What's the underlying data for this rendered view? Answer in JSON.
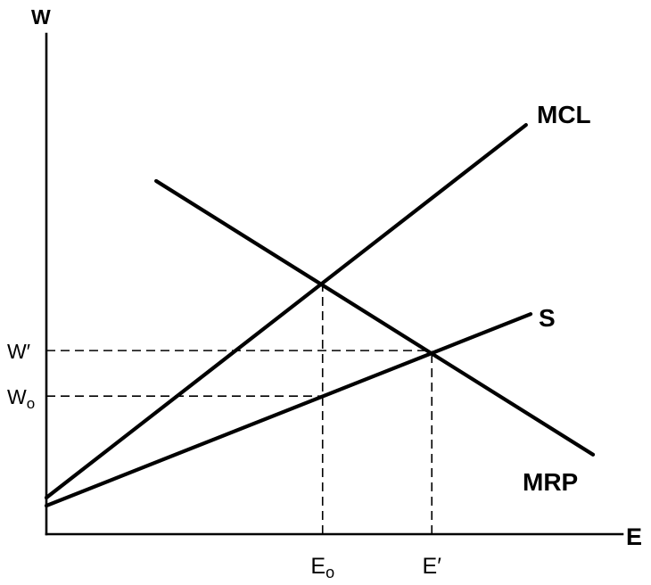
{
  "chart_data": {
    "type": "line",
    "title": "",
    "xlabel": "E",
    "ylabel": "W",
    "xlim": [
      0,
      100
    ],
    "ylim": [
      0,
      100
    ],
    "grid": false,
    "line_color": "#000000",
    "series": [
      {
        "name": "MCL",
        "points": [
          [
            0,
            7.3
          ],
          [
            83.0,
            81.8
          ]
        ]
      },
      {
        "name": "S",
        "points": [
          [
            0,
            5.7
          ],
          [
            83.8,
            44.0
          ]
        ]
      },
      {
        "name": "MRP",
        "points": [
          [
            19.0,
            70.6
          ],
          [
            94.6,
            15.9
          ]
        ]
      }
    ],
    "reference_lines": [
      {
        "orientation": "vertical",
        "x": 47.8,
        "y_range": [
          0,
          50.1
        ]
      },
      {
        "orientation": "vertical",
        "x": 66.7,
        "y_range": [
          0,
          36.7
        ]
      },
      {
        "orientation": "horizontal",
        "y": 36.7,
        "x_range": [
          0,
          66.7
        ]
      },
      {
        "orientation": "horizontal",
        "y": 27.6,
        "x_range": [
          0,
          47.8
        ]
      }
    ],
    "tick_labels": {
      "x": [
        {
          "at": 47.8,
          "main": "E",
          "sub": "o"
        },
        {
          "at": 66.7,
          "main": "E′"
        }
      ],
      "y": [
        {
          "at": 36.7,
          "main": "W′"
        },
        {
          "at": 27.6,
          "main": "W",
          "sub": "o"
        }
      ]
    }
  }
}
